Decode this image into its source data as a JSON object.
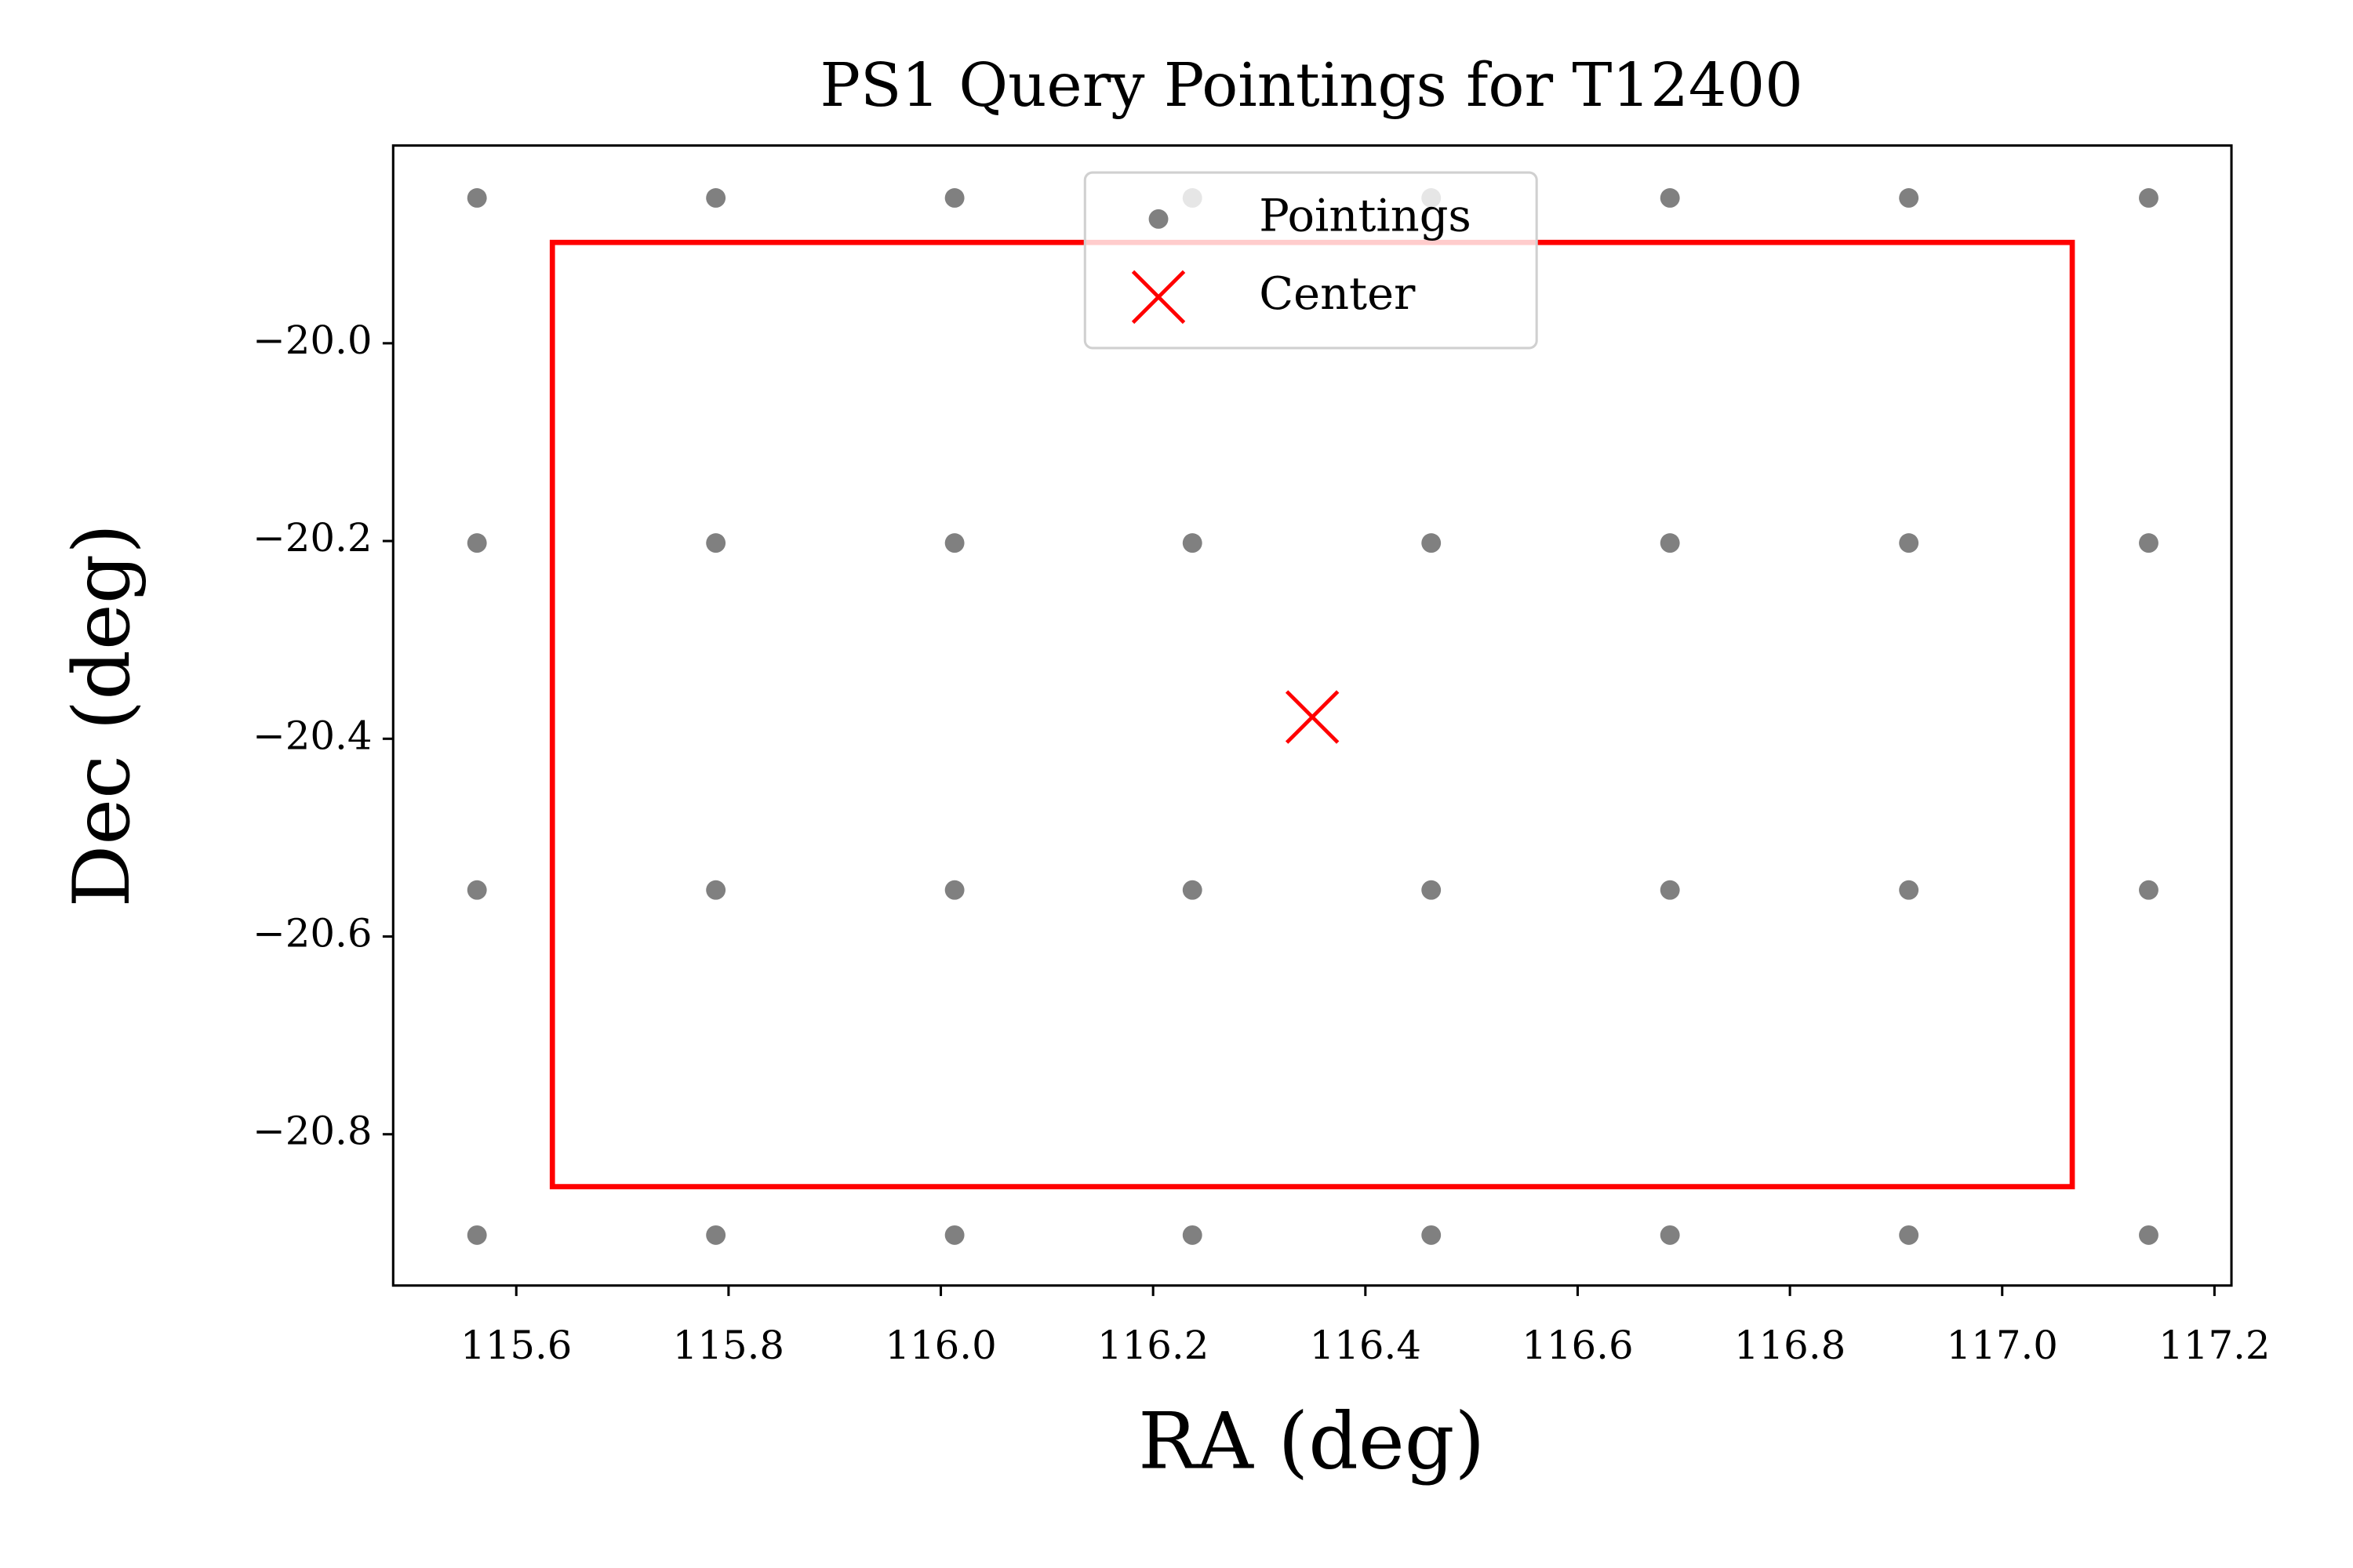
{
  "chart_data": {
    "type": "scatter",
    "title": "PS1 Query Pointings for T12400",
    "xlabel": "RA (deg)",
    "ylabel": "Dec (deg)",
    "xlim": [
      115.484,
      117.216
    ],
    "ylim": [
      -20.953,
      -19.8
    ],
    "xticks": [
      115.6,
      115.8,
      {
        "value": 116,
        "label": "116.0"
      },
      116.2,
      116.4,
      116.6,
      116.8,
      {
        "value": 117,
        "label": "117.0"
      },
      117.2
    ],
    "yticks": [
      {
        "value": -20,
        "label": "−20.0"
      },
      {
        "value": -20.2,
        "label": "−20.2"
      },
      {
        "value": -20.4,
        "label": "−20.4"
      },
      {
        "value": -20.6,
        "label": "−20.6"
      },
      {
        "value": -20.8,
        "label": "−20.8"
      }
    ],
    "legend": "upper center",
    "series": [
      {
        "name": "Pointings",
        "color": "#808080",
        "marker": "dot",
        "x": [
          115.563,
          115.788,
          116.013,
          116.237,
          116.462,
          116.687,
          116.912,
          117.138,
          115.563,
          115.788,
          116.013,
          116.237,
          116.462,
          116.687,
          116.912,
          117.138,
          115.563,
          115.788,
          116.013,
          116.237,
          116.462,
          116.687,
          116.912,
          117.138,
          115.563,
          115.788,
          116.013,
          116.237,
          116.462,
          116.687,
          116.912,
          117.138
        ],
        "y": [
          -19.853,
          -19.853,
          -19.853,
          -19.853,
          -19.853,
          -19.853,
          -19.853,
          -19.853,
          -20.202,
          -20.202,
          -20.202,
          -20.202,
          -20.202,
          -20.202,
          -20.202,
          -20.202,
          -20.553,
          -20.553,
          -20.553,
          -20.553,
          -20.553,
          -20.553,
          -20.553,
          -20.553,
          -20.902,
          -20.902,
          -20.902,
          -20.902,
          -20.902,
          -20.902,
          -20.902,
          -20.902
        ]
      },
      {
        "name": "Center",
        "color": "#ff0000",
        "marker": "x",
        "x": [
          116.35
        ],
        "y": [
          -20.378
        ]
      }
    ],
    "footprint": {
      "color": "#ff0000",
      "xlim": [
        115.634,
        117.066
      ],
      "ylim": [
        -20.853,
        -19.898
      ]
    }
  }
}
